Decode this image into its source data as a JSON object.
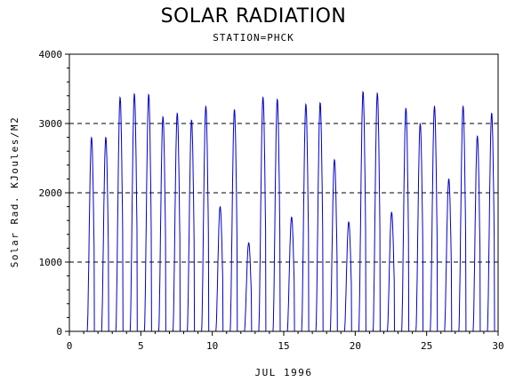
{
  "chart_data": {
    "type": "line",
    "title": "SOLAR RADIATION",
    "subtitle": "STATION=PHCK",
    "xlabel": "JUL 1996",
    "ylabel": "Solar Rad. KJoules/M2",
    "xlim": [
      0,
      30
    ],
    "ylim": [
      0,
      4000
    ],
    "x_ticks": [
      0,
      5,
      10,
      15,
      20,
      25,
      30
    ],
    "y_ticks": [
      0,
      1000,
      2000,
      3000,
      4000
    ],
    "grid": "horizontal dashed",
    "series": [
      {
        "color": "#0000cc",
        "daily_peaks": [
          {
            "day": 1,
            "peak": 2800
          },
          {
            "day": 2,
            "peak": 2800
          },
          {
            "day": 3,
            "peak": 3380
          },
          {
            "day": 4,
            "peak": 3430
          },
          {
            "day": 5,
            "peak": 3420
          },
          {
            "day": 6,
            "peak": 3100
          },
          {
            "day": 7,
            "peak": 3150
          },
          {
            "day": 8,
            "peak": 3050
          },
          {
            "day": 9,
            "peak": 3250
          },
          {
            "day": 10,
            "peak": 1800
          },
          {
            "day": 11,
            "peak": 3200
          },
          {
            "day": 12,
            "peak": 1280
          },
          {
            "day": 13,
            "peak": 3380
          },
          {
            "day": 14,
            "peak": 3350
          },
          {
            "day": 15,
            "peak": 1650
          },
          {
            "day": 16,
            "peak": 3280
          },
          {
            "day": 17,
            "peak": 3300
          },
          {
            "day": 18,
            "peak": 2480
          },
          {
            "day": 19,
            "peak": 1580
          },
          {
            "day": 20,
            "peak": 3460
          },
          {
            "day": 21,
            "peak": 3440
          },
          {
            "day": 22,
            "peak": 1720
          },
          {
            "day": 23,
            "peak": 3220
          },
          {
            "day": 24,
            "peak": 3000
          },
          {
            "day": 25,
            "peak": 3250
          },
          {
            "day": 26,
            "peak": 2200
          },
          {
            "day": 27,
            "peak": 3250
          },
          {
            "day": 28,
            "peak": 2820
          },
          {
            "day": 29,
            "peak": 3150
          }
        ]
      }
    ]
  }
}
